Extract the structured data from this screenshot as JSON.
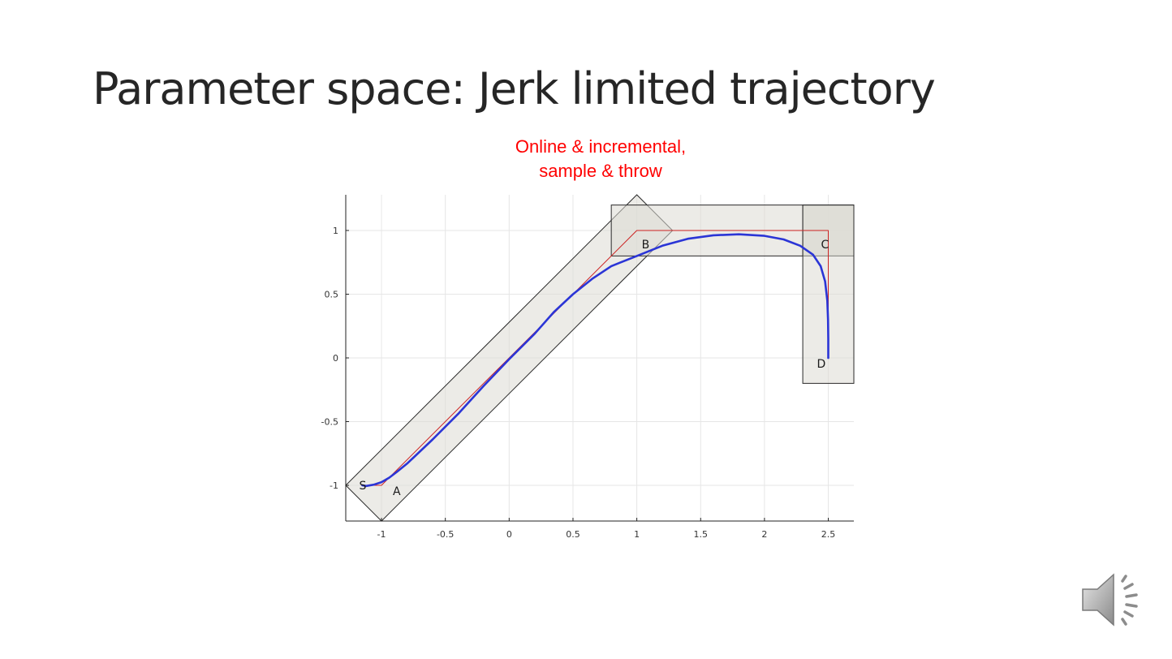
{
  "slide": {
    "title": "Parameter space: Jerk limited trajectory",
    "annotation_line1": "Online & incremental,",
    "annotation_line2": "sample & throw"
  },
  "chart_data": {
    "type": "line",
    "title": "",
    "xlabel": "",
    "ylabel": "",
    "xlim": [
      -1.28,
      2.7
    ],
    "ylim": [
      -1.28,
      1.28
    ],
    "x_ticks": [
      -1,
      -0.5,
      0,
      0.5,
      1,
      1.5,
      2,
      2.5
    ],
    "x_tick_labels": [
      "-1",
      "-0.5",
      "0",
      "0.5",
      "1",
      "1.5",
      "2",
      "2.5"
    ],
    "y_ticks": [
      -1,
      -0.5,
      0,
      0.5,
      1
    ],
    "y_tick_labels": [
      "-1",
      "-0.5",
      "0",
      "0.5",
      "1"
    ],
    "grid": true,
    "waypoints": [
      {
        "label": "S",
        "x": -1.15,
        "y": -1.0
      },
      {
        "label": "A",
        "x": -1.0,
        "y": -1.0
      },
      {
        "label": "B",
        "x": 1.0,
        "y": 1.0
      },
      {
        "label": "C",
        "x": 2.5,
        "y": 1.0
      },
      {
        "label": "D",
        "x": 2.5,
        "y": 0.0
      }
    ],
    "corridors": [
      {
        "name": "corridor-diagonal",
        "polygon": [
          [
            -1.28,
            -1.0
          ],
          [
            -1.0,
            -1.28
          ],
          [
            1.28,
            1.0
          ],
          [
            1.0,
            1.28
          ]
        ]
      },
      {
        "name": "corridor-top",
        "polygon": [
          [
            0.8,
            0.8
          ],
          [
            2.7,
            0.8
          ],
          [
            2.7,
            1.2
          ],
          [
            0.8,
            1.2
          ]
        ]
      },
      {
        "name": "corridor-top-end",
        "polygon": [
          [
            2.3,
            0.8
          ],
          [
            2.7,
            0.8
          ],
          [
            2.7,
            1.2
          ],
          [
            2.3,
            1.2
          ]
        ]
      },
      {
        "name": "corridor-vertical",
        "polygon": [
          [
            2.3,
            -0.2
          ],
          [
            2.7,
            -0.2
          ],
          [
            2.7,
            1.2
          ],
          [
            2.3,
            1.2
          ]
        ]
      }
    ],
    "series": [
      {
        "color": "#cc2222",
        "points": [
          [
            -1.15,
            -1.0
          ],
          [
            -1.0,
            -1.0
          ],
          [
            1.0,
            1.0
          ],
          [
            2.5,
            1.0
          ],
          [
            2.5,
            0.0
          ]
        ]
      },
      {
        "color": "#2b35d6",
        "points": [
          [
            -1.15,
            -1.0
          ],
          [
            -1.12,
            -1.005
          ],
          [
            -1.06,
            -0.995
          ],
          [
            -1.0,
            -0.975
          ],
          [
            -0.94,
            -0.94
          ],
          [
            -0.88,
            -0.895
          ],
          [
            -0.8,
            -0.83
          ],
          [
            -0.6,
            -0.64
          ],
          [
            -0.4,
            -0.44
          ],
          [
            -0.2,
            -0.22
          ],
          [
            0.0,
            -0.01
          ],
          [
            0.2,
            0.19
          ],
          [
            0.35,
            0.36
          ],
          [
            0.5,
            0.5
          ],
          [
            0.65,
            0.62
          ],
          [
            0.8,
            0.72
          ],
          [
            1.0,
            0.8
          ],
          [
            1.2,
            0.88
          ],
          [
            1.4,
            0.935
          ],
          [
            1.6,
            0.962
          ],
          [
            1.8,
            0.97
          ],
          [
            2.0,
            0.958
          ],
          [
            2.15,
            0.93
          ],
          [
            2.28,
            0.88
          ],
          [
            2.38,
            0.81
          ],
          [
            2.44,
            0.72
          ],
          [
            2.475,
            0.6
          ],
          [
            2.492,
            0.45
          ],
          [
            2.498,
            0.3
          ],
          [
            2.5,
            0.15
          ],
          [
            2.5,
            0.0
          ]
        ]
      }
    ]
  },
  "icons": {
    "speaker": "speaker-icon"
  }
}
